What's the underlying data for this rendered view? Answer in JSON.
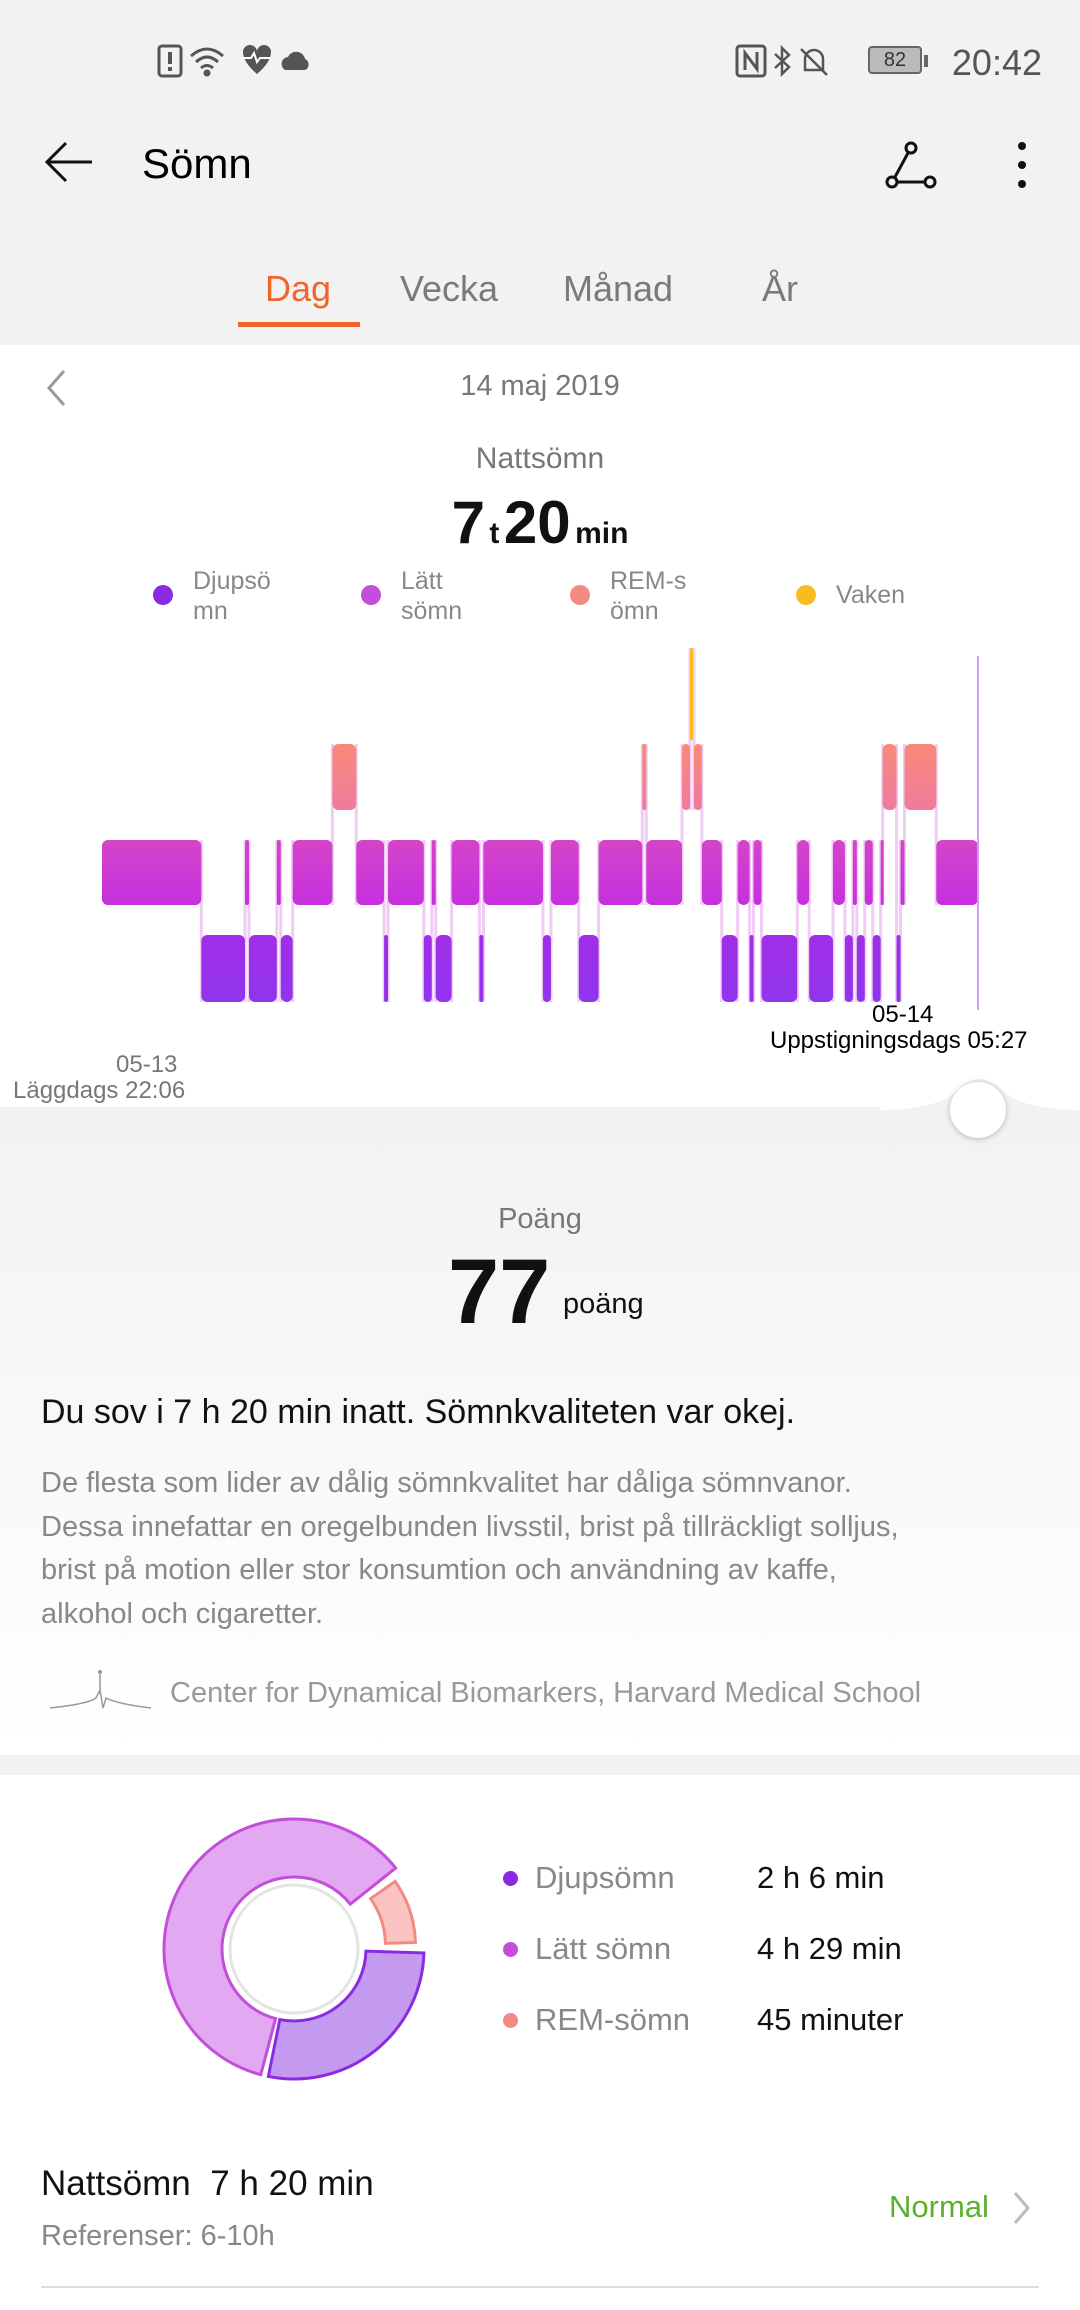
{
  "status_bar": {
    "time": "20:42",
    "battery": "82",
    "left_icons": [
      "sim-alert-icon",
      "wifi-icon",
      "health-heart-icon",
      "cloud-icon"
    ],
    "right_icons": [
      "nfc-icon",
      "bluetooth-icon",
      "bell-off-icon",
      "battery-icon"
    ]
  },
  "toolbar": {
    "title": "Sömn",
    "back_icon": "arrow-left-icon",
    "share_icon": "share-nodes-icon",
    "more_icon": "more-vertical-icon"
  },
  "tabs": [
    {
      "label": "Dag",
      "active": true
    },
    {
      "label": "Vecka"
    },
    {
      "label": "Månad"
    },
    {
      "label": "År"
    }
  ],
  "day": {
    "date": "14 maj 2019",
    "label": "Nattsömn",
    "hours": "7",
    "hours_unit": "t",
    "minutes": "20",
    "minutes_unit": "min"
  },
  "legend": [
    {
      "label": "Djupsömn",
      "color": "#8a2be2"
    },
    {
      "label": "Lätt sömn",
      "color": "#c34ed9"
    },
    {
      "label": "REM-sömn",
      "color": "#f28b82"
    },
    {
      "label": "Vaken",
      "color": "#f7bd1f"
    }
  ],
  "chart_data": {
    "type": "hypnogram",
    "stages": [
      "Vaken",
      "REM-sömn",
      "Lätt sömn",
      "Djupsömn"
    ],
    "start": {
      "date": "05-13",
      "label": "Läggdags",
      "time": "22:06"
    },
    "end": {
      "date": "05-14",
      "label": "Uppstigningsdags",
      "time": "05:27"
    },
    "segments": [
      [
        "light",
        "22:06"
      ],
      [
        "deep",
        "22:56"
      ],
      [
        "light",
        "23:18"
      ],
      [
        "deep",
        "23:20"
      ],
      [
        "light",
        "23:34"
      ],
      [
        "deep",
        "23:36"
      ],
      [
        "light",
        "23:42"
      ],
      [
        "rem",
        "00:02"
      ],
      [
        "light",
        "00:14"
      ],
      [
        "deep",
        "00:28"
      ],
      [
        "light",
        "00:30"
      ],
      [
        "deep",
        "00:48"
      ],
      [
        "light",
        "00:52"
      ],
      [
        "deep",
        "00:54"
      ],
      [
        "light",
        "01:02"
      ],
      [
        "deep",
        "01:16"
      ],
      [
        "light",
        "01:18"
      ],
      [
        "deep",
        "01:48"
      ],
      [
        "light",
        "01:52"
      ],
      [
        "deep",
        "02:06"
      ],
      [
        "light",
        "02:16"
      ],
      [
        "rem",
        "02:38"
      ],
      [
        "light",
        "02:40"
      ],
      [
        "rem",
        "02:58"
      ],
      [
        "awake",
        "03:02"
      ],
      [
        "rem",
        "03:04"
      ],
      [
        "light",
        "03:08"
      ],
      [
        "deep",
        "03:18"
      ],
      [
        "light",
        "03:26"
      ],
      [
        "deep",
        "03:32"
      ],
      [
        "light",
        "03:34"
      ],
      [
        "deep",
        "03:38"
      ],
      [
        "light",
        "03:56"
      ],
      [
        "deep",
        "04:02"
      ],
      [
        "light",
        "04:14"
      ],
      [
        "deep",
        "04:20"
      ],
      [
        "light",
        "04:24"
      ],
      [
        "deep",
        "04:26"
      ],
      [
        "light",
        "04:30"
      ],
      [
        "deep",
        "04:34"
      ],
      [
        "light",
        "04:38"
      ],
      [
        "rem",
        "04:39"
      ],
      [
        "deep",
        "04:46"
      ],
      [
        "light",
        "04:48"
      ],
      [
        "rem",
        "04:50"
      ],
      [
        "light",
        "05:06"
      ]
    ]
  },
  "score": {
    "label": "Poäng",
    "value": "77",
    "unit": "poäng"
  },
  "summary": {
    "headline": "Du sov i 7 h 20 min inatt. Sömnkvaliteten var okej.",
    "lines": [
      "De flesta som lider av dålig sömnkvalitet har dåliga sömnvanor.",
      "Dessa innefattar en oregelbunden livsstil, brist på tillräckligt solljus,",
      "brist på motion eller stor konsumtion och användning av kaffe,",
      "alkohol och cigaretter."
    ],
    "source": "Center for Dynamical Biomarkers, Harvard Medical School"
  },
  "breakdown": [
    {
      "label": "Djupsömn",
      "value": "2 h 6 min",
      "minutes": 126,
      "color": "#8a2be2"
    },
    {
      "label": "Lätt sömn",
      "value": "4 h 29 min",
      "minutes": 269,
      "color": "#c34ed9"
    },
    {
      "label": "REM-sömn",
      "value": "45 minuter",
      "minutes": 45,
      "color": "#f28b82"
    }
  ],
  "night": {
    "label": "Nattsömn  7 h 20 min",
    "reference": "Referenser: 6-10h",
    "status": "Normal",
    "status_color": "#5cb02e"
  }
}
